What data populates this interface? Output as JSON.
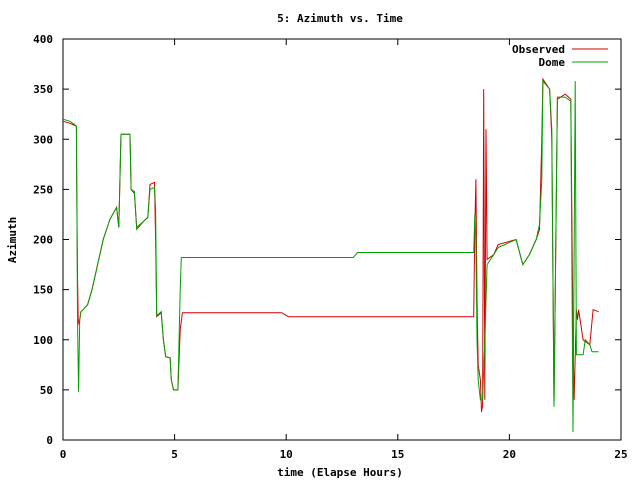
{
  "chart_data": {
    "type": "line",
    "title": "5: Azimuth vs. Time",
    "xlabel": "time (Elapse Hours)",
    "ylabel": "Azimuth",
    "xlim": [
      0,
      25
    ],
    "ylim": [
      0,
      400
    ],
    "x_ticks": [
      "0",
      "5",
      "10",
      "15",
      "20",
      "25"
    ],
    "y_ticks": [
      "0",
      "50",
      "100",
      "150",
      "200",
      "250",
      "300",
      "350",
      "400"
    ],
    "grid": false,
    "legend_position": "top-right",
    "series": [
      {
        "name": "Observed",
        "color": "#d00000",
        "points": [
          [
            0,
            318
          ],
          [
            0.3,
            316
          ],
          [
            0.5,
            314
          ],
          [
            0.6,
            313
          ],
          [
            0.62,
            246
          ],
          [
            0.65,
            165
          ],
          [
            0.68,
            120
          ],
          [
            0.72,
            115
          ],
          [
            0.8,
            128
          ],
          [
            0.9,
            130
          ],
          [
            1.1,
            135
          ],
          [
            1.3,
            150
          ],
          [
            1.5,
            170
          ],
          [
            1.8,
            200
          ],
          [
            2.1,
            220
          ],
          [
            2.4,
            232
          ],
          [
            2.5,
            212
          ],
          [
            2.6,
            305
          ],
          [
            3.0,
            305
          ],
          [
            3.05,
            250
          ],
          [
            3.2,
            246
          ],
          [
            3.3,
            212
          ],
          [
            3.6,
            218
          ],
          [
            3.8,
            222
          ],
          [
            3.9,
            255
          ],
          [
            4.1,
            257
          ],
          [
            4.15,
            200
          ],
          [
            4.2,
            123
          ],
          [
            4.4,
            127
          ],
          [
            4.5,
            100
          ],
          [
            4.6,
            83
          ],
          [
            4.8,
            82
          ],
          [
            4.85,
            60
          ],
          [
            4.95,
            50
          ],
          [
            5.15,
            50
          ],
          [
            5.25,
            110
          ],
          [
            5.35,
            127
          ],
          [
            9.8,
            127
          ],
          [
            10.1,
            123
          ],
          [
            18.4,
            123
          ],
          [
            18.45,
            210
          ],
          [
            18.5,
            260
          ],
          [
            18.55,
            140
          ],
          [
            18.6,
            75
          ],
          [
            18.7,
            60
          ],
          [
            18.75,
            28
          ],
          [
            18.8,
            35
          ],
          [
            18.85,
            350
          ],
          [
            18.9,
            40
          ],
          [
            18.95,
            310
          ],
          [
            19.0,
            180
          ],
          [
            19.3,
            185
          ],
          [
            19.5,
            195
          ],
          [
            20.3,
            200
          ],
          [
            20.6,
            175
          ],
          [
            20.9,
            185
          ],
          [
            21.2,
            200
          ],
          [
            21.35,
            210
          ],
          [
            21.45,
            300
          ],
          [
            21.5,
            360
          ],
          [
            21.8,
            350
          ],
          [
            21.9,
            300
          ],
          [
            22.0,
            35
          ],
          [
            22.15,
            340
          ],
          [
            22.5,
            345
          ],
          [
            22.75,
            340
          ],
          [
            22.85,
            100
          ],
          [
            22.9,
            40
          ],
          [
            23.0,
            130
          ],
          [
            23.05,
            120
          ],
          [
            23.1,
            130
          ],
          [
            23.3,
            100
          ],
          [
            23.6,
            95
          ],
          [
            23.75,
            130
          ],
          [
            24.0,
            128
          ]
        ]
      },
      {
        "name": "Dome",
        "color": "#00a000",
        "points": [
          [
            0,
            320
          ],
          [
            0.3,
            318
          ],
          [
            0.5,
            315
          ],
          [
            0.6,
            313
          ],
          [
            0.62,
            250
          ],
          [
            0.65,
            120
          ],
          [
            0.7,
            48
          ],
          [
            0.75,
            120
          ],
          [
            0.8,
            128
          ],
          [
            0.9,
            130
          ],
          [
            1.1,
            135
          ],
          [
            1.3,
            150
          ],
          [
            1.5,
            170
          ],
          [
            1.8,
            200
          ],
          [
            2.1,
            220
          ],
          [
            2.4,
            232
          ],
          [
            2.5,
            212
          ],
          [
            2.6,
            305
          ],
          [
            3.0,
            305
          ],
          [
            3.05,
            250
          ],
          [
            3.2,
            248
          ],
          [
            3.3,
            210
          ],
          [
            3.6,
            218
          ],
          [
            3.8,
            222
          ],
          [
            3.9,
            250
          ],
          [
            4.1,
            252
          ],
          [
            4.15,
            230
          ],
          [
            4.2,
            124
          ],
          [
            4.4,
            128
          ],
          [
            4.5,
            100
          ],
          [
            4.6,
            83
          ],
          [
            4.8,
            82
          ],
          [
            4.85,
            60
          ],
          [
            4.95,
            50
          ],
          [
            5.15,
            50
          ],
          [
            5.25,
            150
          ],
          [
            5.3,
            182
          ],
          [
            13.0,
            182
          ],
          [
            13.2,
            187
          ],
          [
            18.4,
            187
          ],
          [
            18.45,
            225
          ],
          [
            18.5,
            200
          ],
          [
            18.55,
            100
          ],
          [
            18.6,
            60
          ],
          [
            18.7,
            40
          ],
          [
            18.8,
            40
          ],
          [
            18.9,
            100
          ],
          [
            19.0,
            175
          ],
          [
            19.3,
            185
          ],
          [
            19.5,
            192
          ],
          [
            20.3,
            200
          ],
          [
            20.6,
            175
          ],
          [
            20.9,
            185
          ],
          [
            21.2,
            200
          ],
          [
            21.35,
            215
          ],
          [
            21.45,
            260
          ],
          [
            21.5,
            358
          ],
          [
            21.8,
            350
          ],
          [
            21.9,
            310
          ],
          [
            22.0,
            33
          ],
          [
            22.15,
            342
          ],
          [
            22.5,
            342
          ],
          [
            22.75,
            338
          ],
          [
            22.85,
            8
          ],
          [
            22.95,
            358
          ],
          [
            23.0,
            85
          ],
          [
            23.3,
            85
          ],
          [
            23.4,
            100
          ],
          [
            23.6,
            95
          ],
          [
            23.7,
            88
          ],
          [
            24.0,
            88
          ]
        ]
      }
    ]
  }
}
